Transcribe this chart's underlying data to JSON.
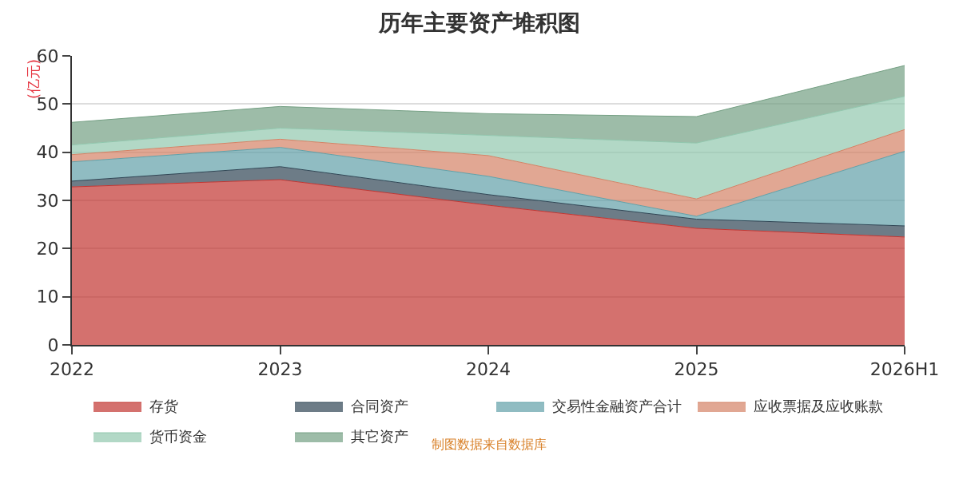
{
  "chart_data": {
    "type": "area",
    "stacked": true,
    "title": "历年主要资产堆积图",
    "ylabel": "(亿元)",
    "categories": [
      "2022",
      "2023",
      "2024",
      "2025",
      "2026H1"
    ],
    "series": [
      {
        "name": "存货",
        "color": "#c23531",
        "values": [
          32.8,
          34.3,
          29,
          24.2,
          22.4
        ]
      },
      {
        "name": "合同资产",
        "color": "#2f4554",
        "values": [
          1.2,
          2.7,
          2.2,
          1.9,
          2.3
        ]
      },
      {
        "name": "交易性金融资产合计",
        "color": "#61a0a8",
        "values": [
          4,
          4,
          3.8,
          0.6,
          15.5
        ]
      },
      {
        "name": "应收票据及应收账款",
        "color": "#d48265",
        "values": [
          1.5,
          1.7,
          4.3,
          3.6,
          4.5
        ]
      },
      {
        "name": "货币资金",
        "color": "#91c7ae",
        "values": [
          2,
          2.3,
          4.2,
          11.6,
          6.9
        ]
      },
      {
        "name": "其它资产",
        "color": "#749f83",
        "values": [
          4.7,
          4.5,
          4.5,
          5.5,
          6.4
        ]
      }
    ],
    "ylim": [
      0,
      60
    ],
    "yticks": [
      0,
      10,
      20,
      30,
      40,
      50,
      60
    ],
    "grid": "y",
    "legend": "bottom",
    "annotations": [
      "制图数据来自数据库"
    ]
  }
}
